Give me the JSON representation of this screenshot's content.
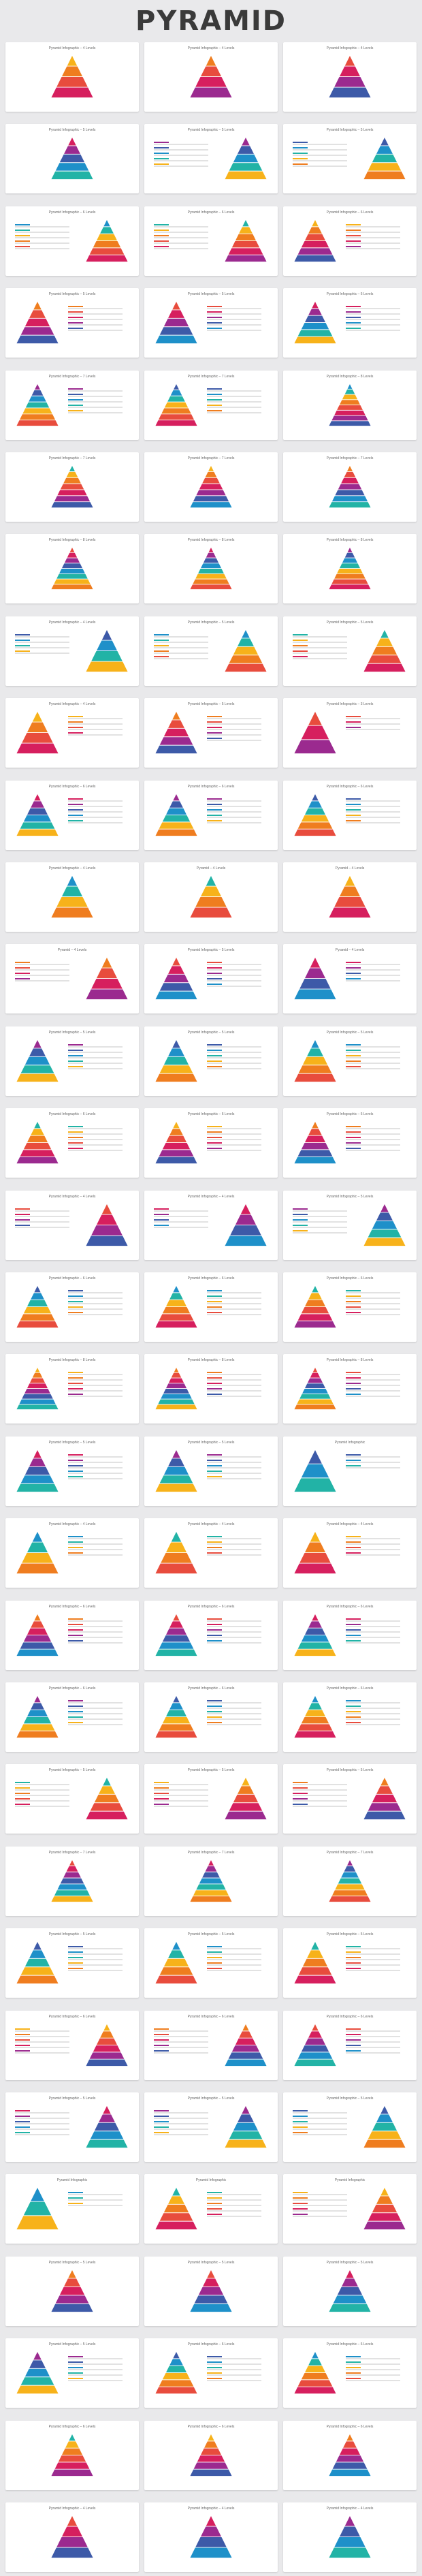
{
  "page": {
    "title": "PYRAMID"
  },
  "slides": [
    {
      "title": "Pyramid Infographic – 4 Levels",
      "layout": "center",
      "levels": 4
    },
    {
      "title": "Pyramid Infographic – 4 Levels",
      "layout": "center",
      "levels": 4
    },
    {
      "title": "Pyramid Infographic – 4 Levels",
      "layout": "center",
      "levels": 4
    },
    {
      "title": "Pyramid Infographic – 5 Levels",
      "layout": "center",
      "levels": 5
    },
    {
      "title": "Pyramid Infographic – 5 Levels",
      "layout": "right",
      "levels": 5
    },
    {
      "title": "Pyramid Infographic – 5 Levels",
      "layout": "right",
      "levels": 5
    },
    {
      "title": "Pyramid Infographic – 6 Levels",
      "layout": "right",
      "levels": 6
    },
    {
      "title": "Pyramid Infographic – 6 Levels",
      "layout": "right",
      "levels": 6
    },
    {
      "title": "Pyramid Infographic – 6 Levels",
      "layout": "left",
      "levels": 6
    },
    {
      "title": "Pyramid Infographic – 5 Levels",
      "layout": "left",
      "levels": 5
    },
    {
      "title": "Pyramid Infographic – 5 Levels",
      "layout": "left",
      "levels": 5
    },
    {
      "title": "Pyramid Infographic – 6 Levels",
      "layout": "left",
      "levels": 6
    },
    {
      "title": "Pyramid Infographic – 7 Levels",
      "layout": "left",
      "levels": 7
    },
    {
      "title": "Pyramid Infographic – 7 Levels",
      "layout": "left",
      "levels": 7
    },
    {
      "title": "Pyramid Infographic – 8 Levels",
      "layout": "center",
      "levels": 8
    },
    {
      "title": "Pyramid Infographic – 7 Levels",
      "layout": "center",
      "levels": 7
    },
    {
      "title": "Pyramid Infographic – 7 Levels",
      "layout": "center",
      "levels": 7
    },
    {
      "title": "Pyramid Infographic – 7 Levels",
      "layout": "center",
      "levels": 7
    },
    {
      "title": "Pyramid Infographic – 8 Levels",
      "layout": "center",
      "levels": 8
    },
    {
      "title": "Pyramid Infographic – 8 Levels",
      "layout": "center",
      "levels": 8
    },
    {
      "title": "Pyramid Infographic – 8 Levels",
      "layout": "center",
      "levels": 8
    },
    {
      "title": "Pyramid Infographic – 4 Levels",
      "layout": "right",
      "levels": 4
    },
    {
      "title": "Pyramid Infographic – 5 Levels",
      "layout": "right",
      "levels": 5
    },
    {
      "title": "Pyramid Infographic – 5 Levels",
      "layout": "right",
      "levels": 5
    },
    {
      "title": "Pyramid Infographic – 4 Levels",
      "layout": "left",
      "levels": 4
    },
    {
      "title": "Pyramid Infographic – 5 Levels",
      "layout": "left",
      "levels": 5
    },
    {
      "title": "Pyramid Infographic – 3 Levels",
      "layout": "left",
      "levels": 3
    },
    {
      "title": "Pyramid Infographic – 6 Levels",
      "layout": "left",
      "levels": 6
    },
    {
      "title": "Pyramid Infographic – 6 Levels",
      "layout": "left",
      "levels": 6
    },
    {
      "title": "Pyramid Infographic – 6 Levels",
      "layout": "left",
      "levels": 6
    },
    {
      "title": "Pyramid Infographic – 4 Levels",
      "layout": "center",
      "levels": 4
    },
    {
      "title": "Pyramid – 4 Levels",
      "layout": "center",
      "levels": 4
    },
    {
      "title": "Pyramid – 4 Levels",
      "layout": "center",
      "levels": 4
    },
    {
      "title": "Pyramid – 4 Levels",
      "layout": "right",
      "levels": 4
    },
    {
      "title": "Pyramid Infographic – 5 Levels",
      "layout": "left",
      "levels": 5
    },
    {
      "title": "Pyramid – 4 Levels",
      "layout": "left",
      "levels": 4
    },
    {
      "title": "Pyramid Infographic – 5 Levels",
      "layout": "left",
      "levels": 5
    },
    {
      "title": "Pyramid Infographic – 5 Levels",
      "layout": "left",
      "levels": 5
    },
    {
      "title": "Pyramid Infographic – 5 Levels",
      "layout": "left",
      "levels": 5
    },
    {
      "title": "Pyramid Infographic – 6 Levels",
      "layout": "left",
      "levels": 6
    },
    {
      "title": "Pyramid Infographic – 6 Levels",
      "layout": "left",
      "levels": 6
    },
    {
      "title": "Pyramid Infographic – 6 Levels",
      "layout": "left",
      "levels": 6
    },
    {
      "title": "Pyramid Infographic – 4 Levels",
      "layout": "right",
      "levels": 4
    },
    {
      "title": "Pyramid Infographic – 4 Levels",
      "layout": "right",
      "levels": 4
    },
    {
      "title": "Pyramid Infographic – 5 Levels",
      "layout": "right",
      "levels": 5
    },
    {
      "title": "Pyramid Infographic – 6 Levels",
      "layout": "left",
      "levels": 6
    },
    {
      "title": "Pyramid Infographic – 6 Levels",
      "layout": "left",
      "levels": 6
    },
    {
      "title": "Pyramid Infographic – 6 Levels",
      "layout": "left",
      "levels": 6
    },
    {
      "title": "Pyramid Infographic – 8 Levels",
      "layout": "left",
      "levels": 8
    },
    {
      "title": "Pyramid Infographic – 8 Levels",
      "layout": "left",
      "levels": 8
    },
    {
      "title": "Pyramid Infographic – 8 Levels",
      "layout": "left",
      "levels": 8
    },
    {
      "title": "Pyramid Infographic – 5 Levels",
      "layout": "left",
      "levels": 5
    },
    {
      "title": "Pyramid Infographic – 5 Levels",
      "layout": "left",
      "levels": 5
    },
    {
      "title": "Pyramid Infographic",
      "layout": "left",
      "levels": 3
    },
    {
      "title": "Pyramid Infographic – 4 Levels",
      "layout": "left",
      "levels": 4
    },
    {
      "title": "Pyramid Infographic – 4 Levels",
      "layout": "left",
      "levels": 4
    },
    {
      "title": "Pyramid Infographic – 4 Levels",
      "layout": "left",
      "levels": 4
    },
    {
      "title": "Pyramid Infographic – 6 Levels",
      "layout": "left",
      "levels": 6
    },
    {
      "title": "Pyramid Infographic – 6 Levels",
      "layout": "left",
      "levels": 6
    },
    {
      "title": "Pyramid Infographic – 6 Levels",
      "layout": "left",
      "levels": 6
    },
    {
      "title": "Pyramid Infographic – 6 Levels",
      "layout": "left",
      "levels": 6
    },
    {
      "title": "Pyramid Infographic – 6 Levels",
      "layout": "left",
      "levels": 6
    },
    {
      "title": "Pyramid Infographic – 6 Levels",
      "layout": "left",
      "levels": 6
    },
    {
      "title": "Pyramid Infographic – 5 Levels",
      "layout": "right",
      "levels": 5
    },
    {
      "title": "Pyramid Infographic – 5 Levels",
      "layout": "right",
      "levels": 5
    },
    {
      "title": "Pyramid Infographic – 5 Levels",
      "layout": "right",
      "levels": 5
    },
    {
      "title": "Pyramid Infographic – 7 Levels",
      "layout": "center",
      "levels": 7
    },
    {
      "title": "Pyramid Infographic – 7 Levels",
      "layout": "center",
      "levels": 7
    },
    {
      "title": "Pyramid Infographic – 7 Levels",
      "layout": "center",
      "levels": 7
    },
    {
      "title": "Pyramid Infographic – 5 Levels",
      "layout": "left",
      "levels": 5
    },
    {
      "title": "Pyramid Infographic – 5 Levels",
      "layout": "left",
      "levels": 5
    },
    {
      "title": "Pyramid Infographic – 5 Levels",
      "layout": "left",
      "levels": 5
    },
    {
      "title": "Pyramid Infographic – 6 Levels",
      "layout": "right",
      "levels": 6
    },
    {
      "title": "Pyramid Infographic – 6 Levels",
      "layout": "right",
      "levels": 6
    },
    {
      "title": "Pyramid Infographic – 6 Levels",
      "layout": "left",
      "levels": 6
    },
    {
      "title": "Pyramid Infographic – 5 Levels",
      "layout": "right",
      "levels": 5
    },
    {
      "title": "Pyramid Infographic – 5 Levels",
      "layout": "right",
      "levels": 5
    },
    {
      "title": "Pyramid Infographic – 5 Levels",
      "layout": "right",
      "levels": 5
    },
    {
      "title": "Pyramid Infographic",
      "layout": "left",
      "levels": 3
    },
    {
      "title": "Pyramid Infographic",
      "layout": "left",
      "levels": 5
    },
    {
      "title": "Pyramid Infographic",
      "layout": "right",
      "levels": 5
    },
    {
      "title": "Pyramid Infographic – 5 Levels",
      "layout": "center",
      "levels": 5
    },
    {
      "title": "Pyramid Infographic – 5 Levels",
      "layout": "center",
      "levels": 5
    },
    {
      "title": "Pyramid Infographic – 5 Levels",
      "layout": "center",
      "levels": 5
    },
    {
      "title": "Pyramid Infographic – 5 Levels",
      "layout": "left",
      "levels": 5
    },
    {
      "title": "Pyramid Infographic – 6 Levels",
      "layout": "left",
      "levels": 6
    },
    {
      "title": "Pyramid Infographic – 6 Levels",
      "layout": "left",
      "levels": 6
    },
    {
      "title": "Pyramid Infographic – 6 Levels",
      "layout": "center",
      "levels": 6
    },
    {
      "title": "Pyramid Infographic – 6 Levels",
      "layout": "center",
      "levels": 6
    },
    {
      "title": "Pyramid Infographic – 6 Levels",
      "layout": "center",
      "levels": 6
    },
    {
      "title": "Pyramid Infographic – 4 Levels",
      "layout": "center",
      "levels": 4
    },
    {
      "title": "Pyramid Infographic – 4 Levels",
      "layout": "center",
      "levels": 4
    },
    {
      "title": "Pyramid Infographic – 4 Levels",
      "layout": "center",
      "levels": 4
    }
  ],
  "colors": [
    "#f7b21a",
    "#ef7d1f",
    "#e84c3d",
    "#d61f5e",
    "#9b2a8f",
    "#3d5aa8",
    "#1e90c9",
    "#22b3a6"
  ]
}
